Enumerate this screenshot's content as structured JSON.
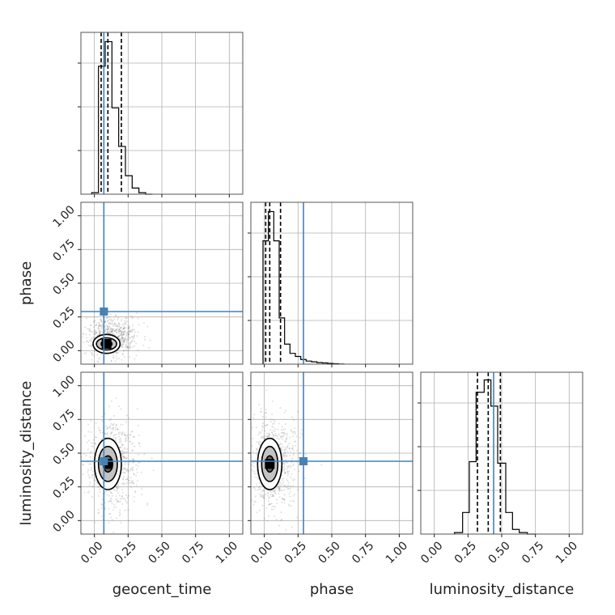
{
  "chart_data": {
    "type": "corner",
    "parameters": [
      "geocent_time",
      "phase",
      "luminosity_distance"
    ],
    "axis_range": [
      -0.1,
      1.1
    ],
    "ticks": [
      0.0,
      0.25,
      0.5,
      0.75,
      1.0
    ],
    "tick_labels": [
      "0.00",
      "0.25",
      "0.50",
      "0.75",
      "1.00"
    ],
    "grid": true,
    "colors": {
      "truth": "#4682b4",
      "histogram": "#000000",
      "quantile": "#000000",
      "scatter": "#555555"
    },
    "truths": {
      "geocent_time": 0.07,
      "phase": 0.29,
      "luminosity_distance": 0.44
    },
    "quantiles": {
      "geocent_time": [
        0.05,
        0.1,
        0.2
      ],
      "phase": [
        0.01,
        0.04,
        0.12
      ],
      "luminosity_distance": [
        0.32,
        0.4,
        0.49
      ]
    },
    "histograms": {
      "geocent_time": {
        "bin_edges": [
          -0.02,
          0.03,
          0.08,
          0.13,
          0.18,
          0.23,
          0.28,
          0.33,
          0.38,
          0.43
        ],
        "counts": [
          0.01,
          0.83,
          0.99,
          0.56,
          0.31,
          0.12,
          0.04,
          0.01,
          0.0
        ]
      },
      "phase": {
        "bin_edges": [
          -0.01,
          0.03,
          0.07,
          0.11,
          0.15,
          0.19,
          0.23,
          0.27,
          0.31,
          0.35,
          0.39,
          0.43,
          0.47,
          0.51,
          0.55,
          0.59
        ],
        "counts": [
          0.8,
          0.99,
          0.8,
          0.3,
          0.13,
          0.07,
          0.05,
          0.03,
          0.02,
          0.015,
          0.01,
          0.008,
          0.005,
          0.003,
          0.001
        ]
      },
      "luminosity_distance": {
        "bin_edges": [
          0.15,
          0.21,
          0.26,
          0.31,
          0.37,
          0.42,
          0.47,
          0.53,
          0.58,
          0.63,
          0.69,
          0.75
        ],
        "counts": [
          0.01,
          0.14,
          0.47,
          0.92,
          1.0,
          0.83,
          0.46,
          0.14,
          0.03,
          0.01,
          0.0
        ]
      }
    },
    "contours_2d": [
      {
        "x": "geocent_time",
        "y": "phase",
        "center": [
          0.09,
          0.05
        ],
        "levels": [
          [
            0.1,
            0.07
          ],
          [
            0.075,
            0.045
          ],
          [
            0.04,
            0.025
          ]
        ]
      },
      {
        "x": "geocent_time",
        "y": "luminosity_distance",
        "center": [
          0.1,
          0.42
        ],
        "levels": [
          [
            0.1,
            0.19
          ],
          [
            0.07,
            0.13
          ],
          [
            0.035,
            0.06
          ]
        ]
      },
      {
        "x": "phase",
        "y": "luminosity_distance",
        "center": [
          0.04,
          0.42
        ],
        "levels": [
          [
            0.09,
            0.19
          ],
          [
            0.06,
            0.13
          ],
          [
            0.03,
            0.06
          ]
        ]
      }
    ]
  }
}
